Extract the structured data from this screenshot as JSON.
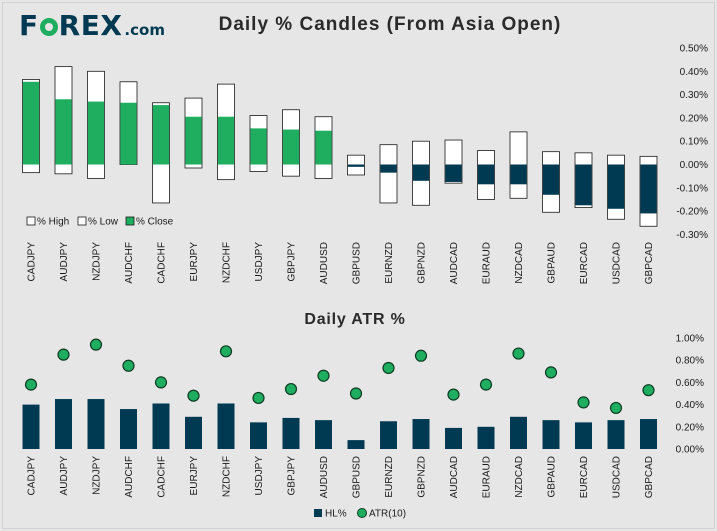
{
  "logo": {
    "pre": "F",
    "post": "REX",
    "suffix": ".com"
  },
  "colors": {
    "background": "#e6e6e6",
    "close_fill": "#1fae5f",
    "range_fill": "#ffffff",
    "negative_fill": "#003a52",
    "axis_text": "#1a1a1a",
    "bar_fill": "#003a52",
    "dot_fill": "#1fae5f"
  },
  "chart_data": [
    {
      "type": "candlestick",
      "title": "Daily % Candles (From Asia Open)",
      "categories": [
        "CADJPY",
        "AUDJPY",
        "NZDJPY",
        "AUDCHF",
        "CADCHF",
        "EURJPY",
        "NZDCHF",
        "USDJPY",
        "GBPJPY",
        "AUDUSD",
        "GBPUSD",
        "EURNZD",
        "GBPNZD",
        "AUDCAD",
        "EURAUD",
        "NZDCAD",
        "GBPAUD",
        "EURCAD",
        "USDCAD",
        "GBPCAD"
      ],
      "series": [
        {
          "name": "% High",
          "values": [
            0.365,
            0.42,
            0.4,
            0.355,
            0.265,
            0.285,
            0.345,
            0.21,
            0.235,
            0.205,
            0.04,
            0.085,
            0.1,
            0.105,
            0.06,
            0.14,
            0.055,
            0.05,
            0.04,
            0.035
          ]
        },
        {
          "name": "% Low",
          "values": [
            -0.035,
            -0.04,
            -0.06,
            0.0,
            -0.165,
            -0.015,
            -0.065,
            -0.03,
            -0.05,
            -0.06,
            -0.045,
            -0.165,
            -0.175,
            -0.08,
            -0.15,
            -0.145,
            -0.205,
            -0.185,
            -0.235,
            -0.265
          ]
        },
        {
          "name": "% Close",
          "values": [
            0.355,
            0.28,
            0.27,
            0.265,
            0.255,
            0.205,
            0.205,
            0.155,
            0.15,
            0.145,
            -0.01,
            -0.035,
            -0.07,
            -0.075,
            -0.085,
            -0.085,
            -0.13,
            -0.175,
            -0.19,
            -0.21
          ]
        }
      ],
      "y_ticks": [
        "0.50%",
        "0.40%",
        "0.30%",
        "0.20%",
        "0.10%",
        "0.00%",
        "-0.10%",
        "-0.20%",
        "-0.30%"
      ],
      "ylim": [
        -0.3,
        0.5
      ],
      "legend": [
        "% High",
        "% Low",
        "% Close"
      ],
      "legend_position": "bottom-left"
    },
    {
      "type": "bar",
      "title": "Daily ATR %",
      "categories": [
        "CADJPY",
        "AUDJPY",
        "NZDJPY",
        "AUDCHF",
        "CADCHF",
        "EURJPY",
        "NZDCHF",
        "USDJPY",
        "GBPJPY",
        "AUDUSD",
        "GBPUSD",
        "EURNZD",
        "GBPNZD",
        "AUDCAD",
        "EURAUD",
        "NZDCAD",
        "GBPAUD",
        "EURCAD",
        "USDCAD",
        "GBPCAD"
      ],
      "series": [
        {
          "name": "HL%",
          "type": "bar",
          "values": [
            0.4,
            0.45,
            0.45,
            0.36,
            0.41,
            0.29,
            0.41,
            0.24,
            0.28,
            0.26,
            0.08,
            0.25,
            0.27,
            0.19,
            0.2,
            0.29,
            0.26,
            0.24,
            0.26,
            0.27
          ]
        },
        {
          "name": "ATR(10)",
          "type": "scatter",
          "values": [
            0.58,
            0.85,
            0.94,
            0.75,
            0.6,
            0.48,
            0.88,
            0.46,
            0.54,
            0.66,
            0.5,
            0.73,
            0.84,
            0.49,
            0.58,
            0.86,
            0.69,
            0.42,
            0.37,
            0.53
          ]
        }
      ],
      "y_ticks": [
        "1.00%",
        "0.80%",
        "0.60%",
        "0.40%",
        "0.20%",
        "0.00%"
      ],
      "ylim": [
        0,
        1.0
      ],
      "legend": [
        "HL%",
        "ATR(10)"
      ],
      "legend_position": "bottom-center"
    }
  ]
}
